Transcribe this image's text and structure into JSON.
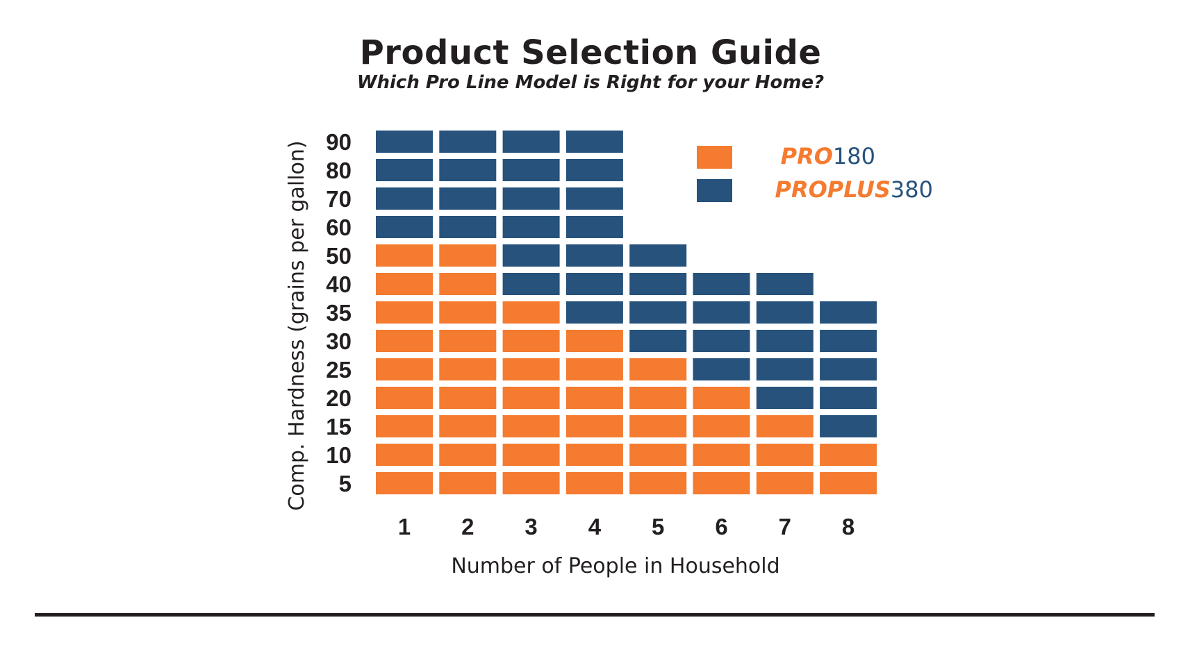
{
  "title": "Product Selection Guide",
  "subtitle": "Which Pro Line Model is Right for your Home?",
  "colors": {
    "pro180": "#f47b2f",
    "proplus380": "#26527c",
    "text": "#231f20"
  },
  "legend": [
    {
      "key": "pro180",
      "bold_part": "PRO",
      "plain_part": "180",
      "swatch": "pro180"
    },
    {
      "key": "proplus380",
      "bold_part": "PROPLUS",
      "plain_part": "380",
      "swatch": "proplus380"
    }
  ],
  "chart_data": {
    "type": "heatmap",
    "title": "Product Selection Guide",
    "subtitle": "Which Pro Line Model is Right for your Home?",
    "xlabel": "Number of People in Household",
    "ylabel": "Comp. Hardness (grains per gallon)",
    "x": [
      "1",
      "2",
      "3",
      "4",
      "5",
      "6",
      "7",
      "8"
    ],
    "y": [
      "90",
      "80",
      "70",
      "60",
      "50",
      "40",
      "35",
      "30",
      "25",
      "20",
      "15",
      "10",
      "5"
    ],
    "legend": [
      "PRO180",
      "PROPLUS380"
    ],
    "legend_position": "top-right",
    "cells": [
      [
        "PROPLUS380",
        "PROPLUS380",
        "PROPLUS380",
        "PROPLUS380",
        null,
        null,
        null,
        null
      ],
      [
        "PROPLUS380",
        "PROPLUS380",
        "PROPLUS380",
        "PROPLUS380",
        null,
        null,
        null,
        null
      ],
      [
        "PROPLUS380",
        "PROPLUS380",
        "PROPLUS380",
        "PROPLUS380",
        null,
        null,
        null,
        null
      ],
      [
        "PROPLUS380",
        "PROPLUS380",
        "PROPLUS380",
        "PROPLUS380",
        null,
        null,
        null,
        null
      ],
      [
        "PRO180",
        "PRO180",
        "PROPLUS380",
        "PROPLUS380",
        "PROPLUS380",
        null,
        null,
        null
      ],
      [
        "PRO180",
        "PRO180",
        "PROPLUS380",
        "PROPLUS380",
        "PROPLUS380",
        "PROPLUS380",
        "PROPLUS380",
        null
      ],
      [
        "PRO180",
        "PRO180",
        "PRO180",
        "PROPLUS380",
        "PROPLUS380",
        "PROPLUS380",
        "PROPLUS380",
        "PROPLUS380"
      ],
      [
        "PRO180",
        "PRO180",
        "PRO180",
        "PRO180",
        "PROPLUS380",
        "PROPLUS380",
        "PROPLUS380",
        "PROPLUS380"
      ],
      [
        "PRO180",
        "PRO180",
        "PRO180",
        "PRO180",
        "PRO180",
        "PROPLUS380",
        "PROPLUS380",
        "PROPLUS380"
      ],
      [
        "PRO180",
        "PRO180",
        "PRO180",
        "PRO180",
        "PRO180",
        "PRO180",
        "PROPLUS380",
        "PROPLUS380"
      ],
      [
        "PRO180",
        "PRO180",
        "PRO180",
        "PRO180",
        "PRO180",
        "PRO180",
        "PRO180",
        "PROPLUS380"
      ],
      [
        "PRO180",
        "PRO180",
        "PRO180",
        "PRO180",
        "PRO180",
        "PRO180",
        "PRO180",
        "PRO180"
      ],
      [
        "PRO180",
        "PRO180",
        "PRO180",
        "PRO180",
        "PRO180",
        "PRO180",
        "PRO180",
        "PRO180"
      ]
    ]
  }
}
